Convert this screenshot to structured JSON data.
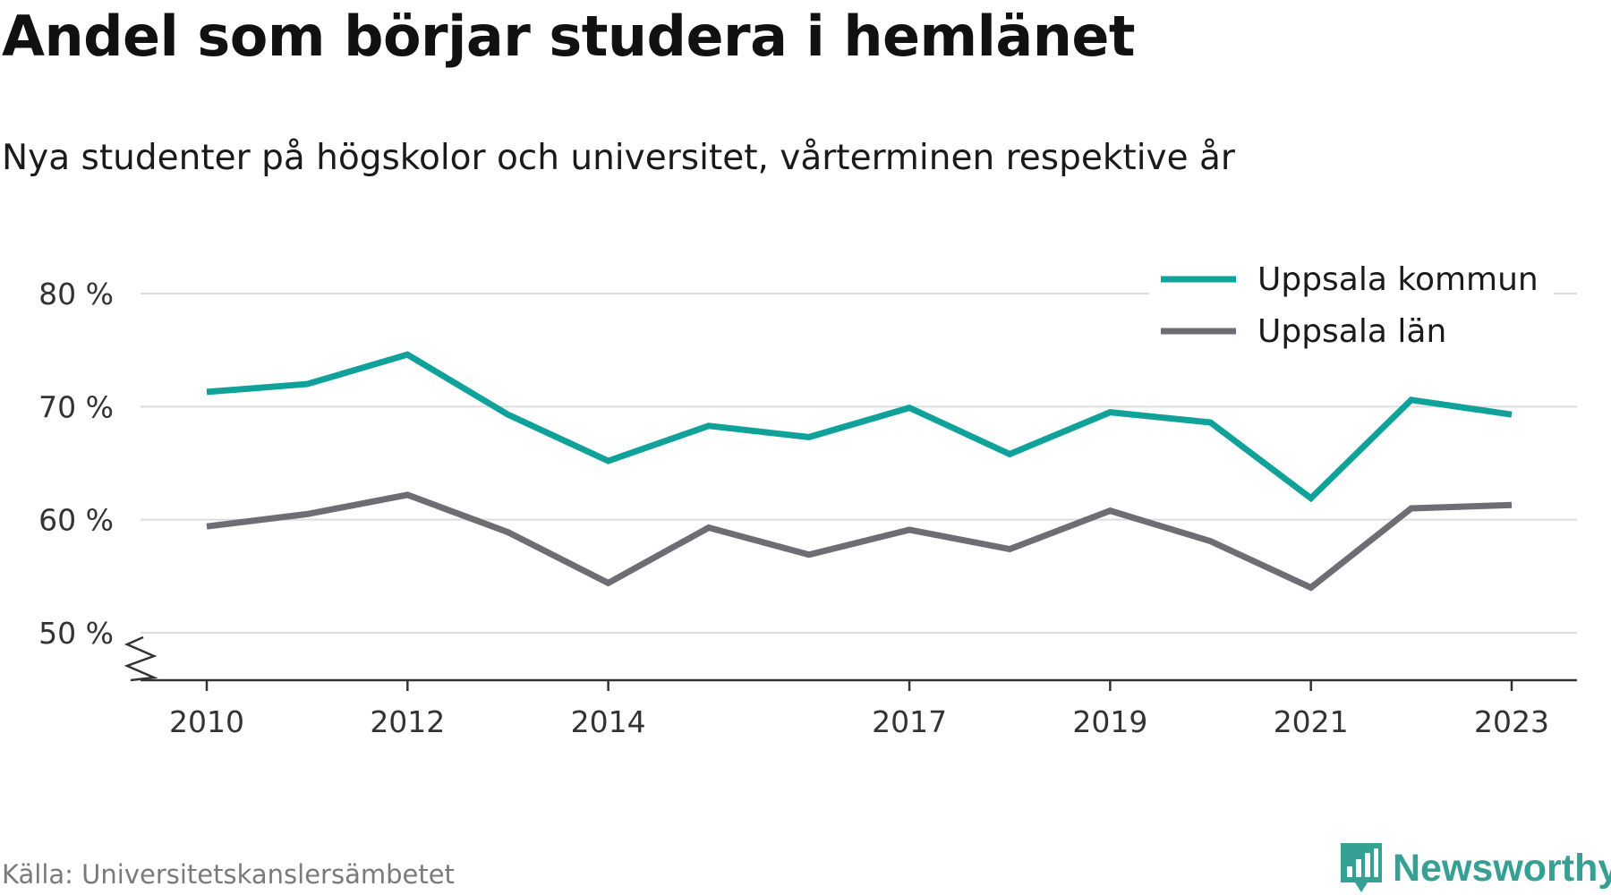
{
  "title": "Andel som börjar studera i hemlänet",
  "subtitle": "Nya studenter på högskolor och universitet, vårterminen respektive år",
  "source": "Källa: Universitetskanslersämbetet",
  "brand": {
    "name": "Newsworthy",
    "icon": "newsworthy-logo-icon",
    "color": "#36a095"
  },
  "chart_data": {
    "type": "line",
    "x": [
      2010,
      2011,
      2012,
      2013,
      2014,
      2015,
      2016,
      2017,
      2018,
      2019,
      2020,
      2021,
      2022,
      2023
    ],
    "x_tick_labels": [
      "2010",
      "2012",
      "2014",
      "2017",
      "2019",
      "2021",
      "2023"
    ],
    "y_tick_labels": [
      "50 %",
      "60 %",
      "70 %",
      "80 %"
    ],
    "y_ticks": [
      50,
      60,
      70,
      80
    ],
    "ylim": [
      46,
      80
    ],
    "y_axis_break": true,
    "grid": true,
    "legend_position": "top-right",
    "series": [
      {
        "name": "Uppsala kommun",
        "color": "#10a29a",
        "values": [
          71.3,
          72.0,
          74.6,
          69.3,
          65.2,
          68.3,
          67.3,
          69.9,
          65.8,
          69.5,
          68.6,
          61.9,
          70.6,
          69.3
        ]
      },
      {
        "name": "Uppsala län",
        "color": "#6e6d74",
        "values": [
          59.4,
          60.5,
          62.2,
          58.9,
          54.4,
          59.3,
          56.9,
          59.1,
          57.4,
          60.8,
          58.1,
          54.0,
          61.0,
          61.3
        ]
      }
    ]
  }
}
